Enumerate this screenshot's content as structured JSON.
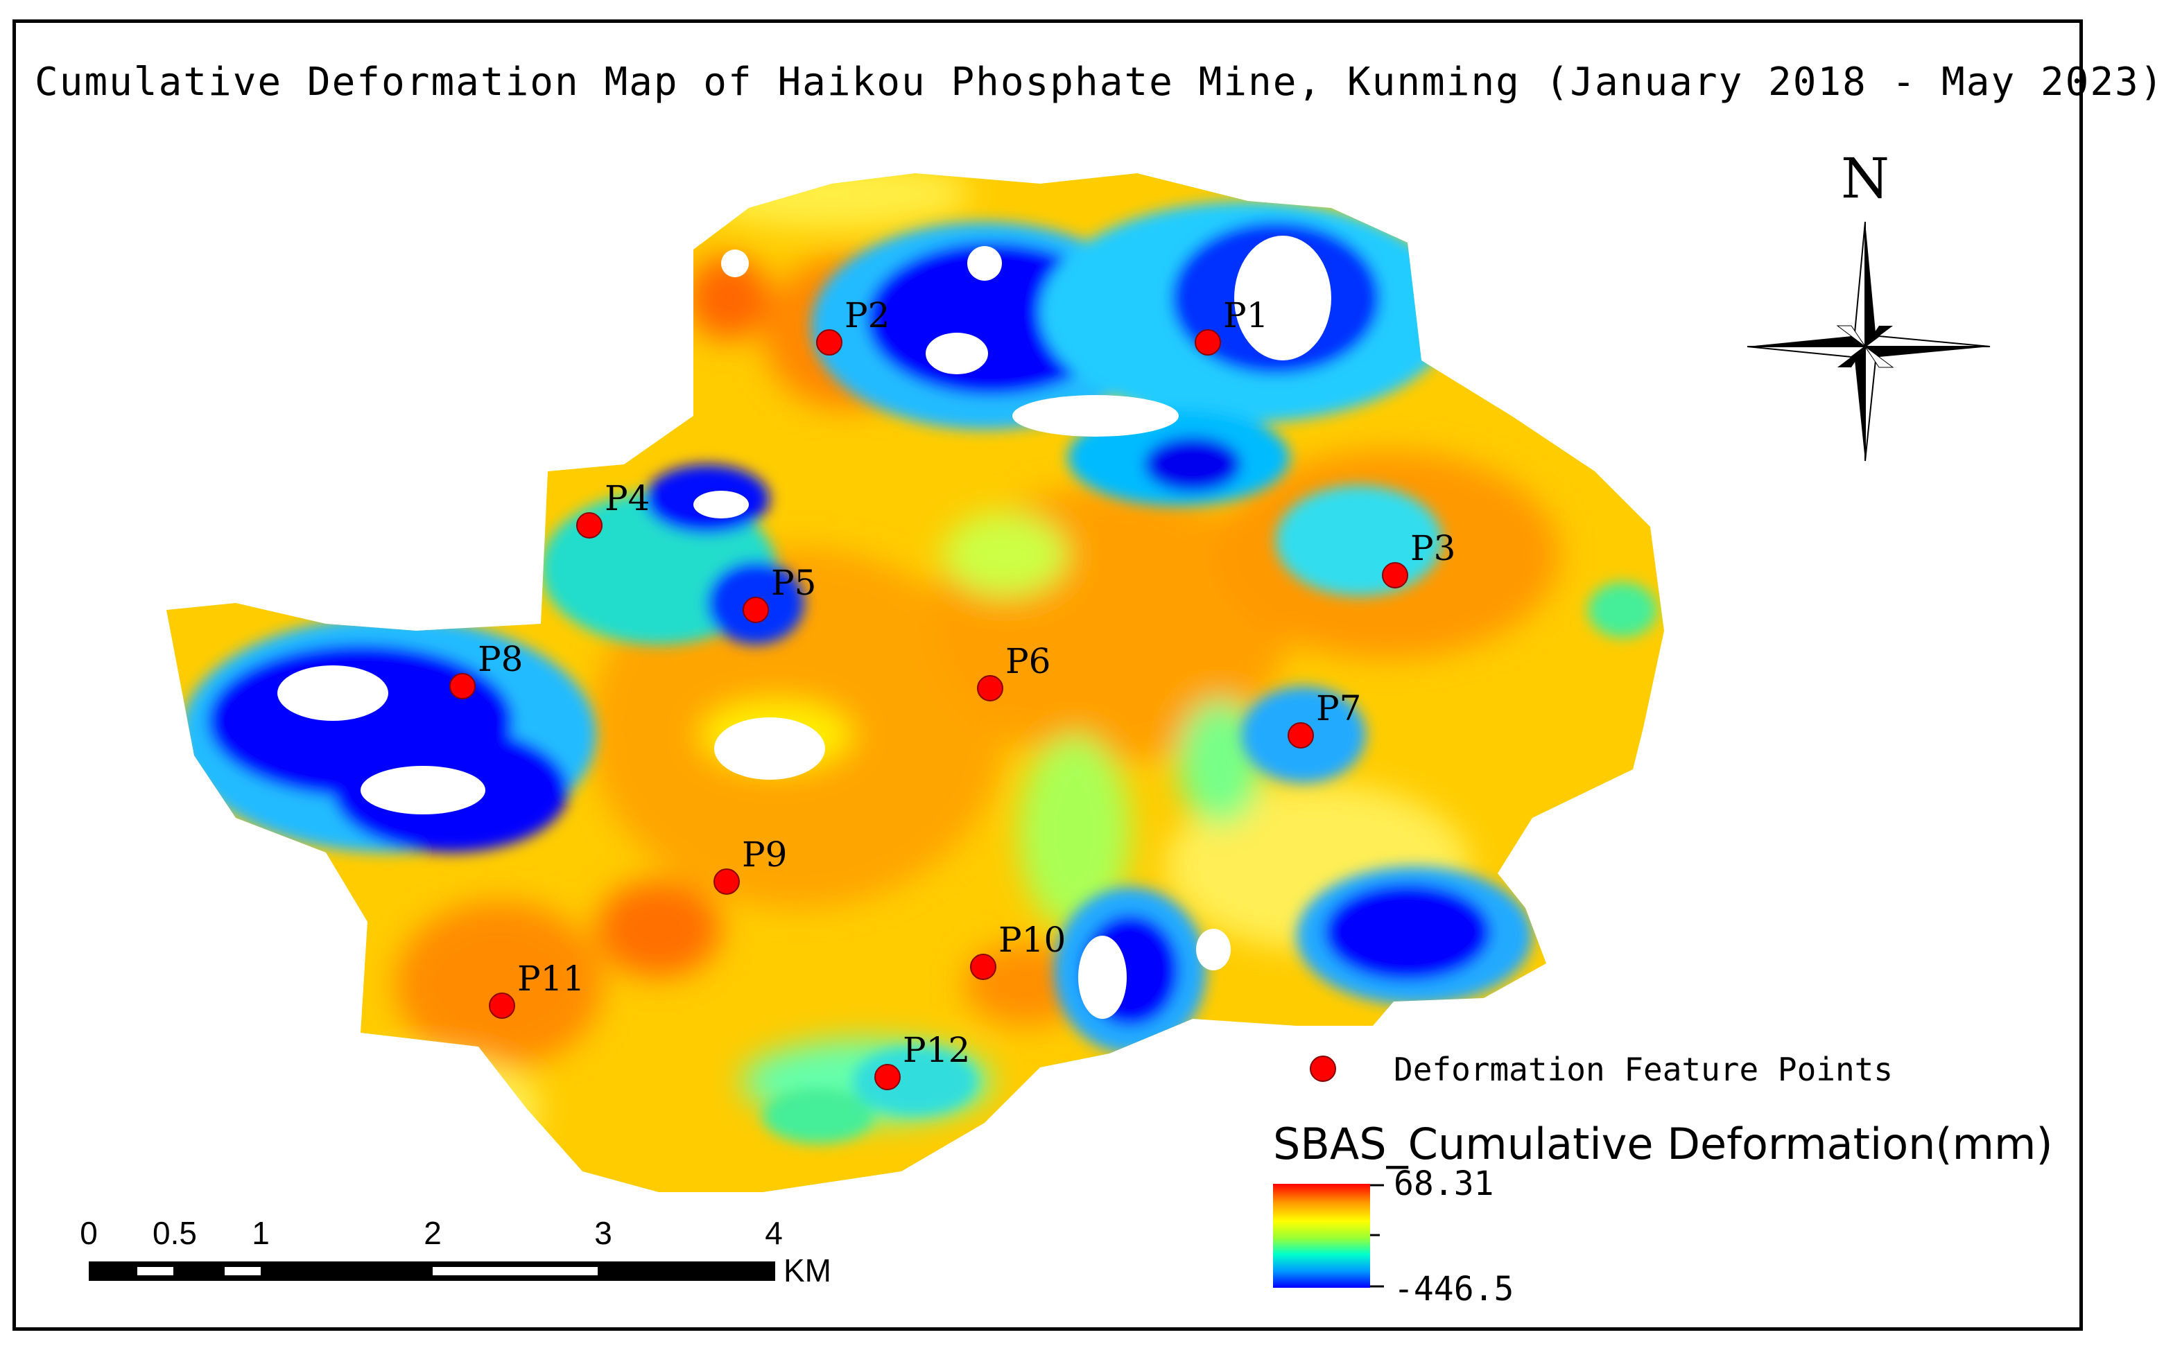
{
  "title": "Cumulative Deformation  Map of Haikou Phosphate Mine, Kunming (January 2018 - May 2023)",
  "north_arrow": {
    "label": "N"
  },
  "legend": {
    "points_label": "Deformation Feature Points",
    "color_ramp_title": "SBAS_Cumulative Deformation(mm)",
    "max_value": "68.31",
    "min_value": "-446.5",
    "ramp_colors": [
      "#ff0000",
      "#ff9900",
      "#ffff00",
      "#99ff33",
      "#00ffcc",
      "#0099ff",
      "#0000ff"
    ],
    "point_color": "#ff0000"
  },
  "scale_bar": {
    "unit": "KM",
    "ticks": [
      "0",
      "0.5",
      "1",
      "2",
      "3",
      "4"
    ]
  },
  "feature_points": [
    {
      "label": "P1"
    },
    {
      "label": "P2"
    },
    {
      "label": "P3"
    },
    {
      "label": "P4"
    },
    {
      "label": "P5"
    },
    {
      "label": "P6"
    },
    {
      "label": "P7"
    },
    {
      "label": "P8"
    },
    {
      "label": "P9"
    },
    {
      "label": "P10"
    },
    {
      "label": "P11"
    },
    {
      "label": "P12"
    }
  ]
}
